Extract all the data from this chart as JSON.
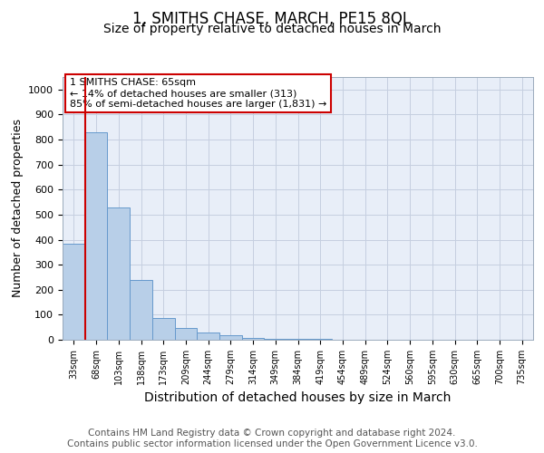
{
  "title": "1, SMITHS CHASE, MARCH, PE15 8QL",
  "subtitle": "Size of property relative to detached houses in March",
  "xlabel": "Distribution of detached houses by size in March",
  "ylabel": "Number of detached properties",
  "categories": [
    "33sqm",
    "68sqm",
    "103sqm",
    "138sqm",
    "173sqm",
    "209sqm",
    "244sqm",
    "279sqm",
    "314sqm",
    "349sqm",
    "384sqm",
    "419sqm",
    "454sqm",
    "489sqm",
    "524sqm",
    "560sqm",
    "595sqm",
    "630sqm",
    "665sqm",
    "700sqm",
    "735sqm"
  ],
  "values": [
    383,
    828,
    530,
    238,
    87,
    47,
    30,
    18,
    8,
    5,
    5,
    2,
    0,
    0,
    0,
    0,
    0,
    0,
    0,
    0,
    0
  ],
  "bar_color": "#b8cfe8",
  "bar_edge_color": "#6699cc",
  "vline_color": "#cc0000",
  "vline_bin": 0,
  "annotation_text": "1 SMITHS CHASE: 65sqm\n← 14% of detached houses are smaller (313)\n85% of semi-detached houses are larger (1,831) →",
  "annotation_box_color": "#ffffff",
  "annotation_box_edge": "#cc0000",
  "ylim": [
    0,
    1050
  ],
  "yticks": [
    0,
    100,
    200,
    300,
    400,
    500,
    600,
    700,
    800,
    900,
    1000
  ],
  "background_color": "#e8eef8",
  "footer_text": "Contains HM Land Registry data © Crown copyright and database right 2024.\nContains public sector information licensed under the Open Government Licence v3.0.",
  "title_fontsize": 12,
  "subtitle_fontsize": 10,
  "xlabel_fontsize": 10,
  "ylabel_fontsize": 9,
  "footer_fontsize": 7.5
}
